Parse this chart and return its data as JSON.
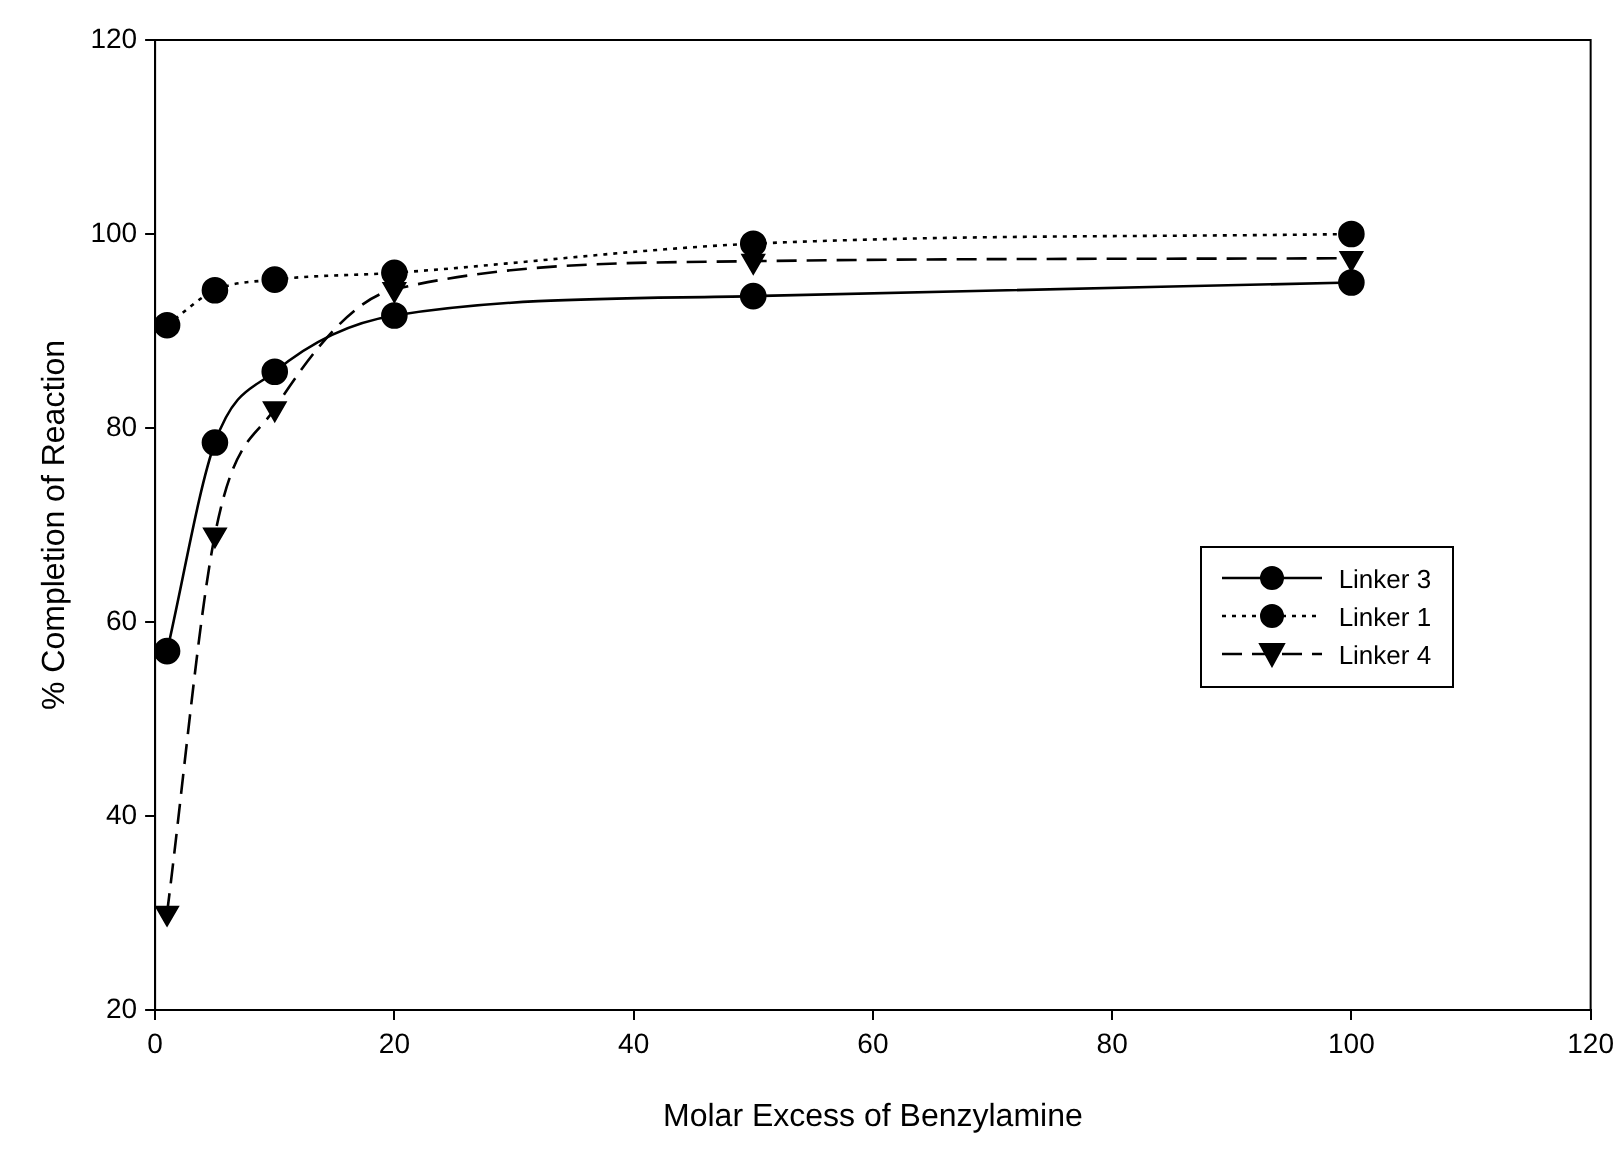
{
  "chart_data": {
    "type": "line",
    "xlabel": "Molar Excess of Benzylamine",
    "ylabel": "% Completion of Reaction",
    "xlim": [
      0,
      120
    ],
    "xticks": [
      0,
      20,
      40,
      60,
      80,
      100,
      120
    ],
    "ylim": [
      20,
      120
    ],
    "yticks": [
      20,
      40,
      60,
      80,
      100,
      120
    ],
    "grid": false,
    "legend": "right",
    "x": [
      1,
      5,
      10,
      20,
      50,
      100
    ],
    "series": [
      {
        "name": "Linker 3",
        "color": "#000000",
        "marker": "circle",
        "line_style": "solid",
        "values": [
          57,
          78.5,
          85.8,
          91.6,
          93.6,
          95
        ]
      },
      {
        "name": "Linker 1",
        "color": "#000000",
        "marker": "circle",
        "line_style": "dotted",
        "values": [
          90.6,
          94.2,
          95.3,
          96,
          99,
          100
        ]
      },
      {
        "name": "Linker 4",
        "color": "#000000",
        "marker": "triangle",
        "line_style": "dashed",
        "values": [
          30,
          69,
          82,
          94.3,
          97.2,
          97.5
        ]
      }
    ]
  }
}
